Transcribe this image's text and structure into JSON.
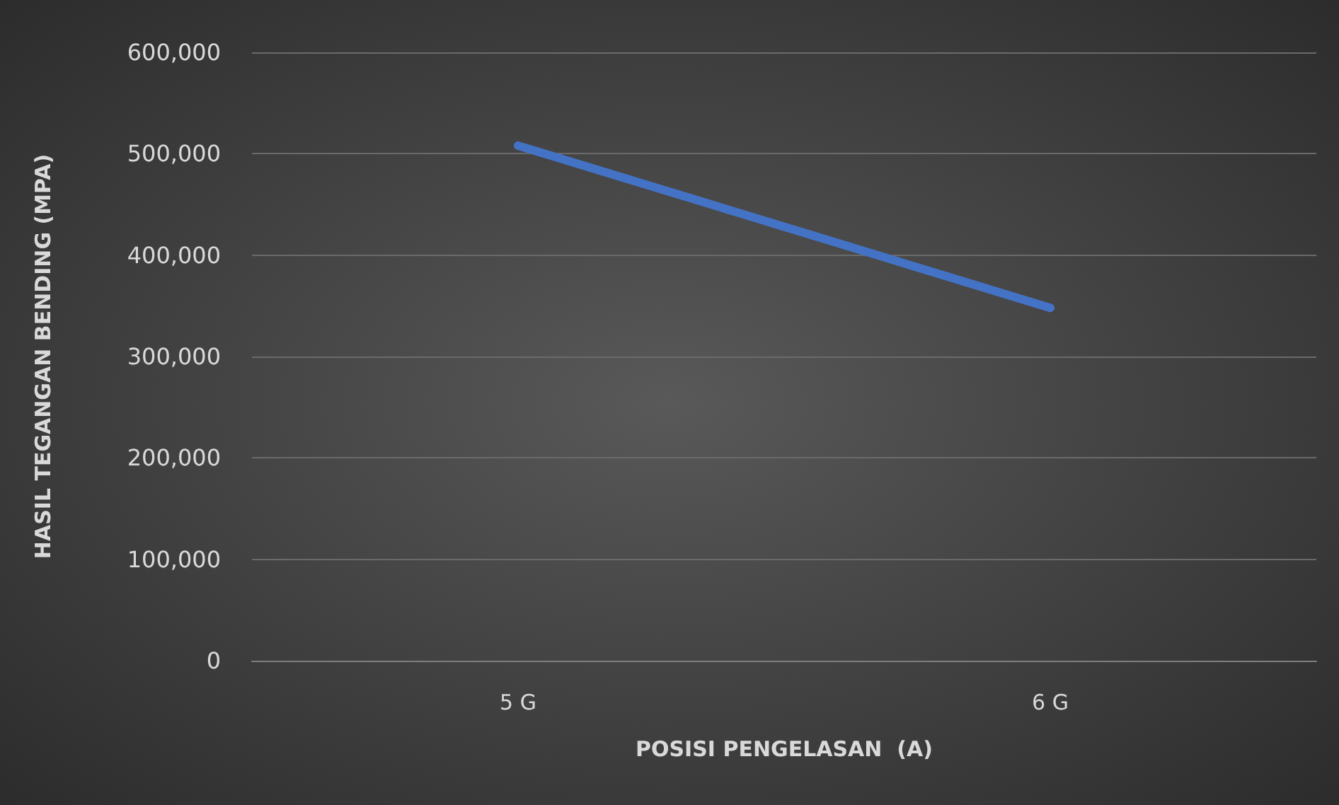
{
  "chart_data": {
    "type": "line",
    "xlabel": "POSISI PENGELASAN  (A)",
    "ylabel": "HASIL TEGANGAN BENDING (MPA)",
    "categories": [
      "5 G",
      "6 G"
    ],
    "series": [
      {
        "color": "#4472c4",
        "values": [
          508000,
          348000
        ]
      }
    ],
    "ylim": [
      0,
      600000
    ],
    "yticks": [
      {
        "value": 0,
        "label": "0"
      },
      {
        "value": 100000,
        "label": "100,000"
      },
      {
        "value": 200000,
        "label": "200,000"
      },
      {
        "value": 300000,
        "label": "300,000"
      },
      {
        "value": 400000,
        "label": "400,000"
      },
      {
        "value": 500000,
        "label": "500,000"
      },
      {
        "value": 600000,
        "label": "600,000"
      }
    ],
    "grid": "y",
    "marker": "none",
    "line_style": "solid"
  }
}
